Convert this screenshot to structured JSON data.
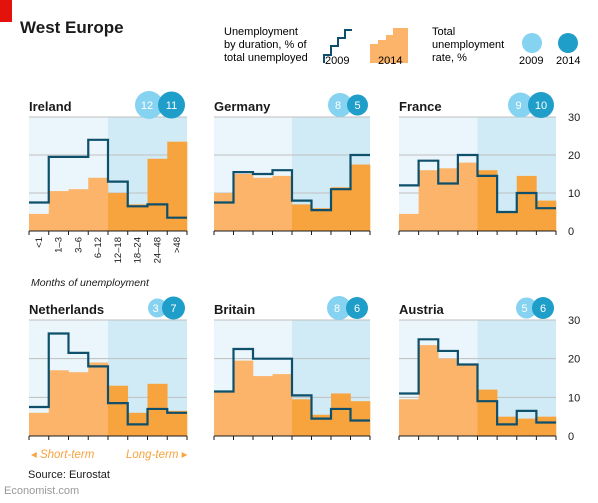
{
  "title": "West Europe",
  "legend": {
    "duration_label": [
      "Unemployment",
      "by duration, % of",
      "total unemployed"
    ],
    "rate_label": [
      "Total",
      "unemployment",
      "rate, %"
    ],
    "year1": "2009",
    "year2": "2014"
  },
  "source": "Source: Eurostat",
  "credit": "Economist.com",
  "colors": {
    "line_2009": "#0e4f6b",
    "bar_2014": "#fbb46a",
    "bar_2014_long": "#f7a33e",
    "bg_short": "#eaf6fb",
    "bg_long": "#d1ebf6",
    "circle_2009": "#86d3f1",
    "circle_2014": "#1f9ec9",
    "gridline": "#bfbfbf",
    "short_term_label": "#f7a33e",
    "long_term_label": "#f7a33e"
  },
  "chart_data": {
    "type": "step-bar",
    "categories": [
      "<1",
      "1–3",
      "3–6",
      "6–12",
      "12–18",
      "18–24",
      "24–48",
      ">48"
    ],
    "xlabel": "Months of unemployment",
    "ylim": [
      0,
      30
    ],
    "yticks": [
      0,
      10,
      20,
      30
    ],
    "short_term_label": "Short-term",
    "long_term_label": "Long-term",
    "panels": [
      {
        "country": "Ireland",
        "rate_2009": 12,
        "rate_2014": 11,
        "values_2009": [
          7.5,
          19.5,
          19.5,
          24,
          13,
          6.5,
          7,
          3.5
        ],
        "values_2014": [
          4.5,
          10.5,
          11,
          14,
          10,
          7,
          19,
          23.5
        ]
      },
      {
        "country": "Germany",
        "rate_2009": 8,
        "rate_2014": 5,
        "values_2009": [
          7.5,
          15.5,
          15,
          16,
          8,
          5.5,
          11,
          20
        ],
        "values_2014": [
          10,
          15,
          14,
          14.5,
          7,
          6,
          11.5,
          17.5
        ]
      },
      {
        "country": "France",
        "rate_2009": 9,
        "rate_2014": 10,
        "values_2009": [
          12,
          18.5,
          12.5,
          20,
          14.5,
          5,
          10,
          6
        ],
        "values_2014": [
          4.5,
          16,
          16.5,
          18,
          16,
          5,
          14.5,
          8
        ]
      },
      {
        "country": "Netherlands",
        "rate_2009": 3,
        "rate_2014": 7,
        "values_2009": [
          7.5,
          26.5,
          21.5,
          18,
          8.5,
          3,
          7,
          6
        ],
        "values_2014": [
          6,
          17,
          16.5,
          19,
          13,
          6,
          13.5,
          6.5
        ]
      },
      {
        "country": "Britain",
        "rate_2009": 8,
        "rate_2014": 6,
        "values_2009": [
          11.5,
          22.5,
          20,
          20,
          10.5,
          4.5,
          7,
          4
        ],
        "values_2014": [
          11.5,
          19.5,
          15.5,
          16,
          9.5,
          5.5,
          11,
          9
        ]
      },
      {
        "country": "Austria",
        "rate_2009": 5,
        "rate_2014": 6,
        "values_2009": [
          11,
          25,
          22,
          18.5,
          9,
          3,
          6.5,
          3.5
        ],
        "values_2014": [
          9.5,
          23.5,
          20,
          18.5,
          12,
          5,
          4.5,
          5
        ]
      }
    ]
  }
}
